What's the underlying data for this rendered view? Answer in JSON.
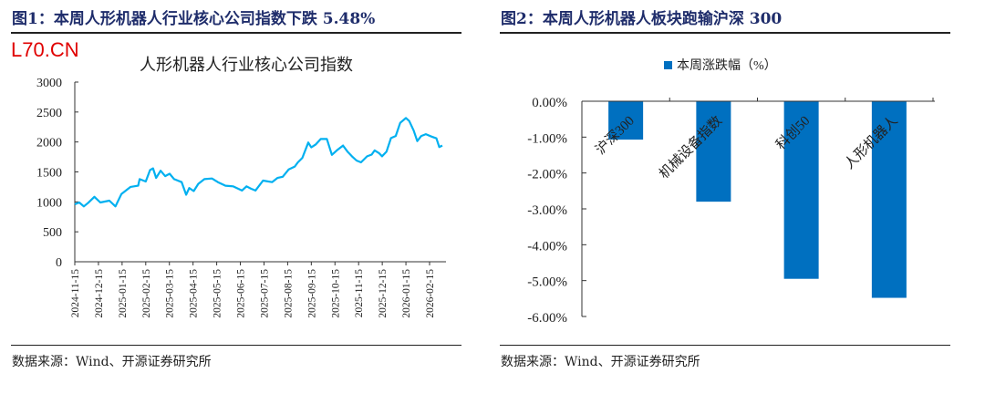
{
  "figures": [
    {
      "caption": "图1：本周人形机器人行业核心公司指数下跌 5.48%",
      "source": "数据来源：Wind、开源证券研究所"
    },
    {
      "caption": "图2：本周人形机器人板块跑输沪深 300",
      "source": "数据来源：Wind、开源证券研究所"
    }
  ],
  "watermark": "L70.CN",
  "colors": {
    "line": "#00b0f0",
    "bar": "#0070c0",
    "caption": "#1f2d6b"
  },
  "chart_data": [
    {
      "type": "line",
      "title": "人形机器人行业核心公司指数",
      "xlabel": "",
      "ylabel": "",
      "ylim": [
        0,
        3000
      ],
      "yticks": [
        "0",
        "500",
        "1000",
        "1500",
        "2000",
        "2500",
        "3000"
      ],
      "xticks": [
        "2024-11-15",
        "2024-12-15",
        "2025-01-15",
        "2025-02-15",
        "2025-03-15",
        "2025-04-15",
        "2025-05-15",
        "2025-06-15",
        "2025-07-15",
        "2025-08-15",
        "2025-09-15",
        "2025-10-15",
        "2025-11-15",
        "2025-12-15",
        "2026-01-15",
        "2026-02-15"
      ],
      "x_unit": "months since 2024-11-15",
      "series": [
        {
          "name": "人形机器人行业核心公司指数",
          "points": [
            [
              0,
              960
            ],
            [
              0.19,
              990
            ],
            [
              0.38,
              925
            ],
            [
              0.57,
              985
            ],
            [
              0.83,
              1085
            ],
            [
              1.08,
              990
            ],
            [
              1.46,
              1020
            ],
            [
              1.72,
              925
            ],
            [
              1.97,
              1130
            ],
            [
              2.36,
              1250
            ],
            [
              2.68,
              1270
            ],
            [
              2.74,
              1380
            ],
            [
              3.0,
              1340
            ],
            [
              3.18,
              1530
            ],
            [
              3.31,
              1560
            ],
            [
              3.44,
              1400
            ],
            [
              3.63,
              1520
            ],
            [
              3.82,
              1430
            ],
            [
              4.01,
              1470
            ],
            [
              4.2,
              1380
            ],
            [
              4.52,
              1330
            ],
            [
              4.71,
              1120
            ],
            [
              4.84,
              1230
            ],
            [
              5.03,
              1180
            ],
            [
              5.22,
              1300
            ],
            [
              5.48,
              1380
            ],
            [
              5.8,
              1390
            ],
            [
              6.05,
              1330
            ],
            [
              6.37,
              1270
            ],
            [
              6.69,
              1260
            ],
            [
              7.07,
              1190
            ],
            [
              7.26,
              1260
            ],
            [
              7.45,
              1220
            ],
            [
              7.64,
              1190
            ],
            [
              7.96,
              1355
            ],
            [
              8.34,
              1330
            ],
            [
              8.57,
              1400
            ],
            [
              8.79,
              1420
            ],
            [
              9.04,
              1540
            ],
            [
              9.3,
              1590
            ],
            [
              9.43,
              1660
            ],
            [
              9.62,
              1735
            ],
            [
              9.87,
              1990
            ],
            [
              10.0,
              1910
            ],
            [
              10.19,
              1960
            ],
            [
              10.4,
              2050
            ],
            [
              10.66,
              2050
            ],
            [
              10.87,
              1785
            ],
            [
              11.08,
              1860
            ],
            [
              11.34,
              1940
            ],
            [
              11.53,
              1840
            ],
            [
              11.72,
              1760
            ],
            [
              11.91,
              1690
            ],
            [
              12.1,
              1660
            ],
            [
              12.36,
              1760
            ],
            [
              12.55,
              1790
            ],
            [
              12.68,
              1860
            ],
            [
              12.87,
              1810
            ],
            [
              12.99,
              1760
            ],
            [
              13.18,
              1840
            ],
            [
              13.37,
              2065
            ],
            [
              13.57,
              2100
            ],
            [
              13.76,
              2320
            ],
            [
              14.0,
              2400
            ],
            [
              14.14,
              2350
            ],
            [
              14.33,
              2190
            ],
            [
              14.48,
              2015
            ],
            [
              14.65,
              2100
            ],
            [
              14.84,
              2130
            ],
            [
              15.09,
              2090
            ],
            [
              15.29,
              2060
            ],
            [
              15.41,
              1915
            ],
            [
              15.54,
              1940
            ]
          ]
        }
      ]
    },
    {
      "type": "bar",
      "legend": "本周涨跌幅（%）",
      "legend_position": "top-center",
      "categories": [
        "沪深300",
        "机械设备指数",
        "科创50",
        "人形机器人"
      ],
      "values": [
        -1.07,
        -2.8,
        -4.95,
        -5.48
      ],
      "ylim": [
        -6,
        0
      ],
      "yticks": [
        "0.00%",
        "-1.00%",
        "-2.00%",
        "-3.00%",
        "-4.00%",
        "-5.00%",
        "-6.00%"
      ]
    }
  ]
}
